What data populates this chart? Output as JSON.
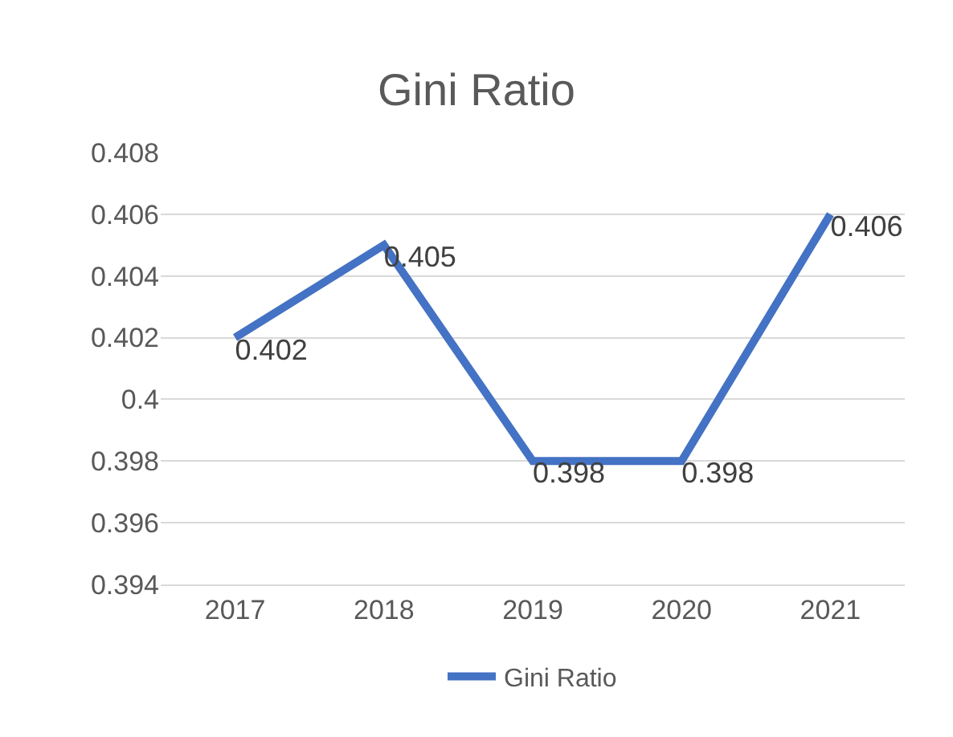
{
  "chart_data": {
    "type": "line",
    "title": "Gini Ratio",
    "categories": [
      "2017",
      "2018",
      "2019",
      "2020",
      "2021"
    ],
    "series": [
      {
        "name": "Gini Ratio",
        "color": "#4472c4",
        "values": [
          0.402,
          0.405,
          0.398,
          0.398,
          0.406
        ]
      }
    ],
    "ylim": [
      0.394,
      0.408
    ],
    "yticks": [
      0.394,
      0.396,
      0.398,
      0.4,
      0.402,
      0.404,
      0.406,
      0.408
    ],
    "grid": "y",
    "legend": "bottom",
    "data_labels": true,
    "marker": "none",
    "line_style": "solid"
  }
}
